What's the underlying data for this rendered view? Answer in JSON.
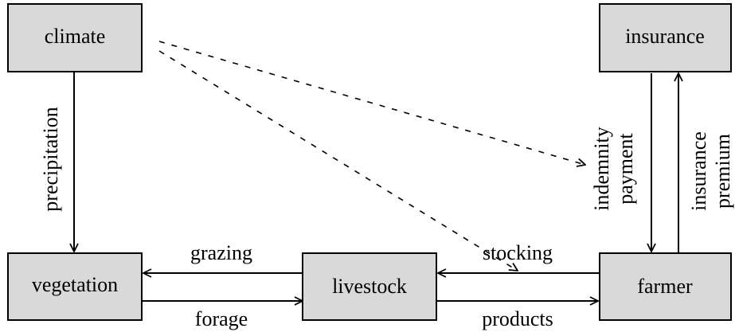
{
  "nodes": [
    {
      "label": "climate"
    },
    {
      "label": "insurance"
    },
    {
      "label": "vegetation"
    },
    {
      "label": "livestock"
    },
    {
      "label": "farmer"
    }
  ],
  "edges": [
    {
      "label": [
        "precipitation"
      ]
    },
    {
      "label": [
        "grazing"
      ]
    },
    {
      "label": [
        "forage"
      ]
    },
    {
      "label": [
        "stocking"
      ]
    },
    {
      "label": [
        "products"
      ]
    },
    {
      "label": [
        "indemnity",
        "payment"
      ]
    },
    {
      "label": [
        "insurance",
        "premium"
      ]
    }
  ]
}
